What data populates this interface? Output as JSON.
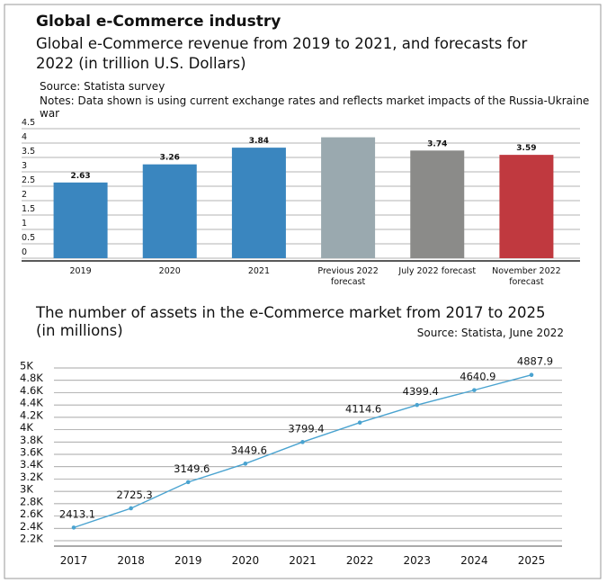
{
  "title": "Global e-Commerce industry",
  "chart_data": [
    {
      "type": "bar",
      "title": "Global e-Commerce revenue from 2019 to 2021, and forecasts for 2022 (in trillion U.S. Dollars)",
      "source": "Source: Statista survey",
      "notes": "Notes: Data shown is using current exchange rates and reflects market impacts of the Russia-Ukraine war",
      "categories": [
        "2019",
        "2020",
        "2021",
        "Previous 2022 forecast",
        "July 2022 forecast",
        "November 2022 forecast"
      ],
      "values": [
        2.63,
        3.26,
        3.84,
        4.2,
        3.74,
        3.59
      ],
      "value_labels": [
        "2.63",
        "3.26",
        "3.84",
        null,
        "3.74",
        "3.59"
      ],
      "colors": [
        "#3a86bf",
        "#3a86bf",
        "#3a86bf",
        "#9aa9af",
        "#8b8b89",
        "#c0393f"
      ],
      "ylim": [
        0,
        4.5
      ],
      "yticks": [
        0,
        0.5,
        1,
        1.5,
        2,
        2.5,
        3,
        3.5,
        4,
        4.5
      ],
      "grid": true
    },
    {
      "type": "line",
      "title": "The number of assets in the e-Commerce market from 2017 to 2025 (in millions)",
      "source": "Source: Statista, June 2022",
      "categories": [
        "2017",
        "2018",
        "2019",
        "2020",
        "2021",
        "2022",
        "2023",
        "2024",
        "2025"
      ],
      "values": [
        2413.1,
        2725.3,
        3149.6,
        3449.6,
        3799.4,
        4114.6,
        4399.4,
        4640.9,
        4887.9
      ],
      "color": "#4aa3d0",
      "ylim": [
        2200,
        5000
      ],
      "yticks": [
        {
          "value": 2200,
          "label": "2.2K"
        },
        {
          "value": 2400,
          "label": "2.4K"
        },
        {
          "value": 2600,
          "label": "2.6K"
        },
        {
          "value": 2800,
          "label": "2.8K"
        },
        {
          "value": 3000,
          "label": "3K"
        },
        {
          "value": 3200,
          "label": "3.2K"
        },
        {
          "value": 3400,
          "label": "3.4K"
        },
        {
          "value": 3600,
          "label": "3.6K"
        },
        {
          "value": 3800,
          "label": "3.8K"
        },
        {
          "value": 4000,
          "label": "4K"
        },
        {
          "value": 4200,
          "label": "4.2K"
        },
        {
          "value": 4400,
          "label": "4.4K"
        },
        {
          "value": 4600,
          "label": "4.6K"
        },
        {
          "value": 4800,
          "label": "4.8K"
        },
        {
          "value": 5000,
          "label": "5K"
        }
      ],
      "grid": true
    }
  ]
}
